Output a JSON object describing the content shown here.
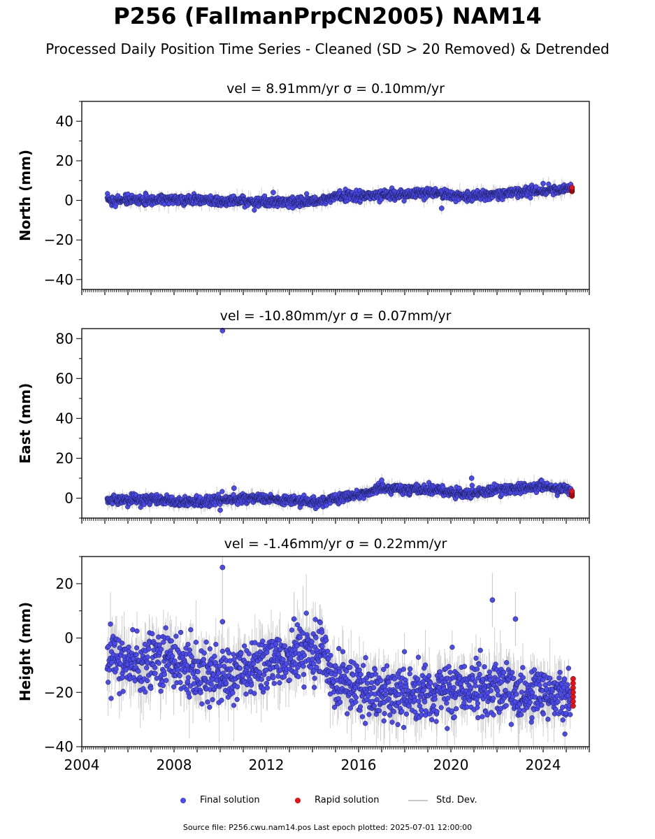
{
  "header": {
    "title": "P256 (FallmanPrpCN2005) NAM14",
    "subtitle": "Processed Daily Position Time Series - Cleaned (SD > 20 Removed) & Detrended"
  },
  "legend": {
    "final": "Final solution",
    "rapid": "Rapid solution",
    "std": "Std. Dev."
  },
  "footer": "Source file: P256.cwu.nam14.pos  Last epoch plotted: 2025-07-01 12:00:00",
  "colors": {
    "final": "#4a4af0",
    "rapid": "#e81010",
    "std": "#c8c8c8"
  },
  "chart_data": [
    {
      "type": "scatter",
      "title": "vel = 8.91mm/yr   σ = 0.10mm/yr",
      "ylabel": "North (mm)",
      "xlim": [
        2004,
        2026
      ],
      "ylim": [
        -45,
        50
      ],
      "yticks": [
        -40,
        -20,
        0,
        20,
        40
      ],
      "x_start": 2005.1,
      "x_end": 2025.2,
      "trend": [
        [
          2005.1,
          0
        ],
        [
          2008,
          0.5
        ],
        [
          2010,
          -0.5
        ],
        [
          2013,
          -1
        ],
        [
          2014.5,
          0
        ],
        [
          2015,
          2
        ],
        [
          2017,
          2.5
        ],
        [
          2019.5,
          4
        ],
        [
          2020.5,
          2
        ],
        [
          2022,
          3
        ],
        [
          2023,
          4
        ],
        [
          2025.2,
          6
        ]
      ],
      "scatter_sd": 1.2,
      "err_sd": 1.5,
      "outliers": [
        [
          2012.3,
          4
        ],
        [
          2019.6,
          -4
        ],
        [
          2024.0,
          8.5
        ]
      ],
      "rapid": {
        "x": 2025.25,
        "values": [
          4.5,
          6.5
        ]
      }
    },
    {
      "type": "scatter",
      "title": "vel = -10.80mm/yr   σ = 0.07mm/yr",
      "ylabel": "East (mm)",
      "xlim": [
        2004,
        2026
      ],
      "ylim": [
        -10,
        85
      ],
      "yticks": [
        0,
        20,
        40,
        60,
        80
      ],
      "x_start": 2005.1,
      "x_end": 2025.2,
      "trend": [
        [
          2005.1,
          -1
        ],
        [
          2007,
          -1
        ],
        [
          2009,
          -2
        ],
        [
          2011,
          0
        ],
        [
          2013,
          -1
        ],
        [
          2014.5,
          -2
        ],
        [
          2016,
          2
        ],
        [
          2017,
          5
        ],
        [
          2019.5,
          4
        ],
        [
          2020.5,
          2
        ],
        [
          2022,
          4
        ],
        [
          2024,
          6
        ],
        [
          2025.2,
          4
        ]
      ],
      "scatter_sd": 1.2,
      "err_sd": 1.5,
      "outliers": [
        [
          2010.1,
          84
        ],
        [
          2010.6,
          5
        ],
        [
          2017.0,
          9
        ],
        [
          2020.9,
          10
        ],
        [
          2010.0,
          -6
        ]
      ],
      "rapid": {
        "x": 2025.25,
        "values": [
          1,
          3.5
        ]
      }
    },
    {
      "type": "scatter",
      "title": "vel = -1.46mm/yr   σ = 0.22mm/yr",
      "ylabel": "Height (mm)",
      "xlim": [
        2004,
        2026
      ],
      "ylim": [
        -40,
        30
      ],
      "yticks": [
        -40,
        -20,
        0,
        20
      ],
      "xticks": [
        2004,
        2008,
        2012,
        2016,
        2020,
        2024
      ],
      "x_start": 2005.1,
      "x_end": 2025.2,
      "trend": [
        [
          2005.1,
          -8
        ],
        [
          2008,
          -10
        ],
        [
          2010,
          -14
        ],
        [
          2012,
          -10
        ],
        [
          2014.5,
          -4
        ],
        [
          2014.8,
          -15
        ],
        [
          2016,
          -18
        ],
        [
          2017,
          -22
        ],
        [
          2019,
          -20
        ],
        [
          2021,
          -18
        ],
        [
          2023,
          -20
        ],
        [
          2025.2,
          -22
        ]
      ],
      "scatter_sd": 5.0,
      "err_sd": 5.0,
      "outliers": [
        [
          2010.1,
          26
        ],
        [
          2010.1,
          6
        ],
        [
          2021.8,
          14
        ],
        [
          2022.8,
          7
        ],
        [
          2013.2,
          7
        ]
      ],
      "rapid": {
        "x": 2025.3,
        "values": [
          -15,
          -25
        ]
      }
    }
  ]
}
